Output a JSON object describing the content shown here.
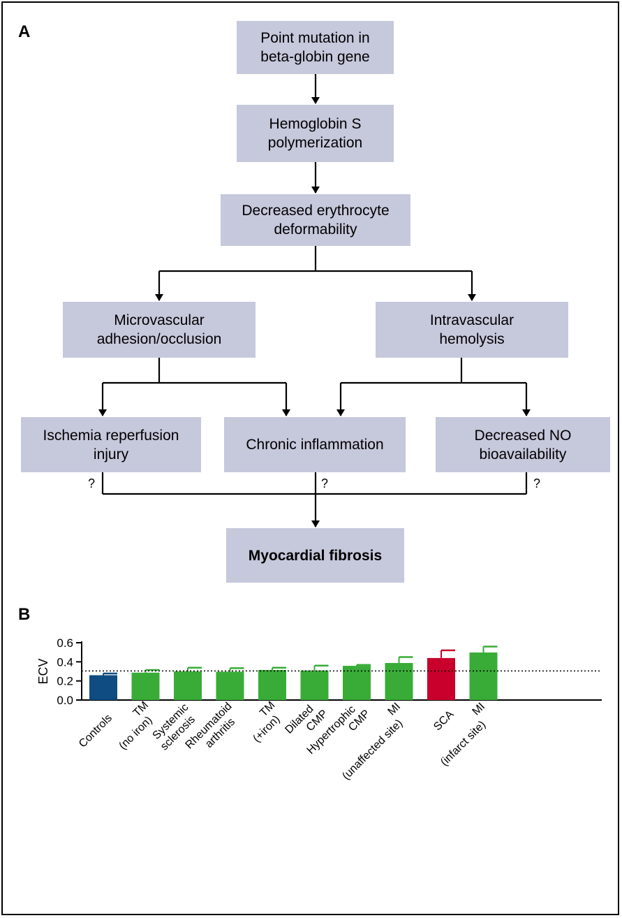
{
  "panel_a": {
    "label": "A",
    "boxes": {
      "point_mutation": "Point mutation in\nbeta-globin gene",
      "hbs_polymerization": "Hemoglobin S\npolymerization",
      "decreased_deformability": "Decreased erythrocyte\ndeformability",
      "microvascular": "Microvascular\nadhesion/occlusion",
      "intravascular": "Intravascular\nhemolysis",
      "ischemia": "Ischemia reperfusion\ninjury",
      "inflammation": "Chronic inflammation",
      "no_bioavailability": "Decreased NO\nbioavailability",
      "fibrosis": "Myocardial fibrosis"
    },
    "question_mark": "?"
  },
  "panel_b": {
    "label": "B",
    "chart_data": {
      "type": "bar",
      "ylabel": "ECV",
      "ylim": [
        0,
        0.6
      ],
      "yticks": [
        "0.0",
        "0.2",
        "0.4",
        "0.6"
      ],
      "ytick_values": [
        0,
        0.2,
        0.4,
        0.6
      ],
      "reference_line": 0.305,
      "categories": [
        [
          "Controls"
        ],
        [
          "TM",
          "(no iron)"
        ],
        [
          "Systemic",
          "sclerosis"
        ],
        [
          "Rheumatoid",
          "arthritis"
        ],
        [
          "TM",
          "(+iron)"
        ],
        [
          "Dilated",
          "CMP"
        ],
        [
          "Hypertrophic",
          "CMP"
        ],
        [
          "MI",
          "(unaffected site)"
        ],
        [
          "SCA"
        ],
        [
          "MI",
          "(infarct site)"
        ]
      ],
      "values": [
        0.26,
        0.287,
        0.3,
        0.297,
        0.315,
        0.31,
        0.358,
        0.388,
        0.44,
        0.498
      ],
      "errors": [
        0.018,
        0.028,
        0.038,
        0.037,
        0.023,
        0.05,
        0.01,
        0.062,
        0.08,
        0.062
      ],
      "colors": [
        "#0f4c81",
        "#39ac37",
        "#39ac37",
        "#39ac37",
        "#39ac37",
        "#39ac37",
        "#39ac37",
        "#39ac37",
        "#c8002b",
        "#39ac37"
      ]
    }
  }
}
